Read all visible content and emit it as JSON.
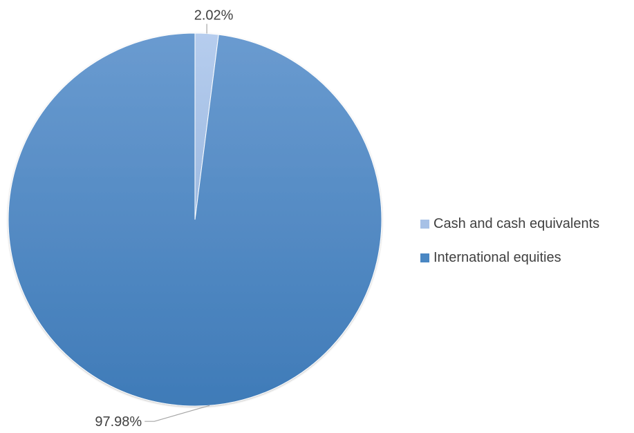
{
  "chart_data": {
    "type": "pie",
    "title": "",
    "categories": [
      "Cash and cash equivalents",
      "International equities"
    ],
    "values": [
      2.02,
      97.98
    ],
    "data_labels": [
      "2.02%",
      "97.98%"
    ],
    "colors": [
      "#a7c1e6",
      "#4a87c3"
    ],
    "start_angle_deg": 0,
    "direction": "clockwise",
    "legend_position": "right",
    "grid": false
  },
  "legend": {
    "items": [
      {
        "label": "Cash and cash equivalents",
        "color": "#a7c1e6"
      },
      {
        "label": "International equities",
        "color": "#4a87c3"
      }
    ]
  }
}
